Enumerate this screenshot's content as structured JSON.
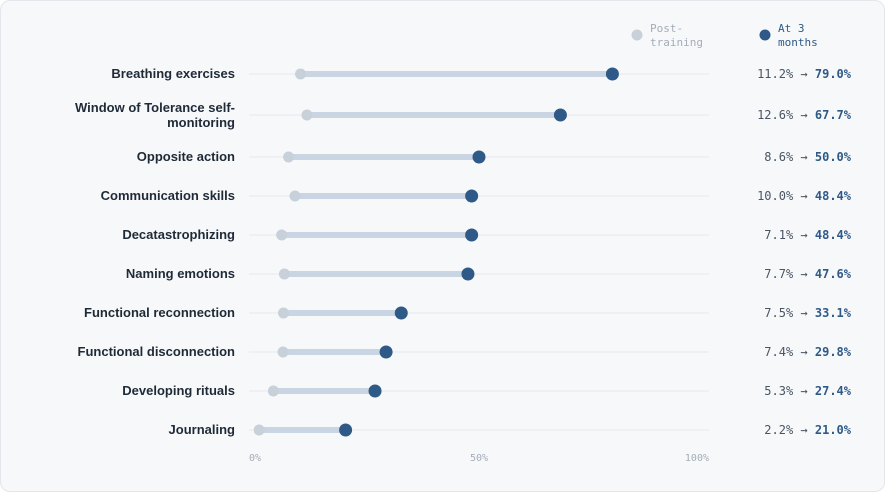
{
  "chart_data": {
    "type": "dumbbell",
    "legend": [
      {
        "name": "Post-\ntraining",
        "color": "#c8d0d9"
      },
      {
        "name": "At 3\nmonths",
        "color": "#2f5a87"
      }
    ],
    "legend_position": "top-right",
    "xlim": [
      0,
      100
    ],
    "x_ticks": [
      "0%",
      "50%",
      "100%"
    ],
    "grid": true,
    "arrow": "→",
    "categories": [
      "Breathing exercises",
      "Window of Tolerance self-monitoring",
      "Opposite action",
      "Communication skills",
      "Decatastrophizing",
      "Naming emotions",
      "Functional reconnection",
      "Functional disconnection",
      "Developing rituals",
      "Journaling"
    ],
    "series": [
      {
        "name": "Post-training",
        "values": [
          11.2,
          12.6,
          8.6,
          10.0,
          7.1,
          7.7,
          7.5,
          7.4,
          5.3,
          2.2
        ]
      },
      {
        "name": "At 3 months",
        "values": [
          79.0,
          67.7,
          50.0,
          48.4,
          48.4,
          47.6,
          33.1,
          29.8,
          27.4,
          21.0
        ]
      }
    ],
    "value_labels": [
      {
        "from": "11.2%",
        "to": "79.0%"
      },
      {
        "from": "12.6%",
        "to": "67.7%"
      },
      {
        "from": "8.6%",
        "to": "50.0%"
      },
      {
        "from": "10.0%",
        "to": "48.4%"
      },
      {
        "from": "7.1%",
        "to": "48.4%"
      },
      {
        "from": "7.7%",
        "to": "47.6%"
      },
      {
        "from": "7.5%",
        "to": "33.1%"
      },
      {
        "from": "7.4%",
        "to": "29.8%"
      },
      {
        "from": "5.3%",
        "to": "27.4%"
      },
      {
        "from": "2.2%",
        "to": "21.0%"
      }
    ]
  }
}
